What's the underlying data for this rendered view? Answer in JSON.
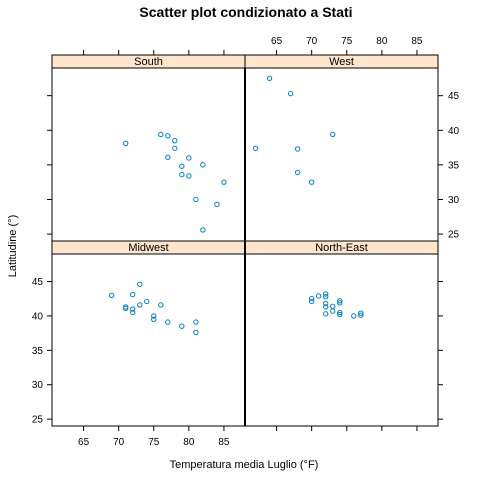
{
  "chart_data": {
    "type": "scatter",
    "title": "Scatter plot condizionato a Stati",
    "xlabel": "Temperatura media Luglio (°F)",
    "ylabel": "Latitudine (°)",
    "xlim": [
      60.5,
      88
    ],
    "ylim": [
      24,
      49
    ],
    "x_ticks": [
      65,
      70,
      75,
      80,
      85
    ],
    "y_ticks": [
      25,
      30,
      35,
      40,
      45
    ],
    "layout": "2x2",
    "strip_color": "#ffe5cc",
    "point_color": "#0080c0",
    "panels": [
      {
        "name": "South",
        "position": "top-left",
        "points": [
          {
            "x": 71,
            "y": 38.1
          },
          {
            "x": 76,
            "y": 39.4
          },
          {
            "x": 77,
            "y": 39.2
          },
          {
            "x": 78,
            "y": 38.5
          },
          {
            "x": 78,
            "y": 37.4
          },
          {
            "x": 77,
            "y": 36.1
          },
          {
            "x": 80,
            "y": 36.0
          },
          {
            "x": 79,
            "y": 34.8
          },
          {
            "x": 82,
            "y": 35.0
          },
          {
            "x": 79,
            "y": 33.6
          },
          {
            "x": 80,
            "y": 33.4
          },
          {
            "x": 85,
            "y": 32.5
          },
          {
            "x": 81,
            "y": 30.0
          },
          {
            "x": 84,
            "y": 29.3
          },
          {
            "x": 82,
            "y": 25.6
          }
        ]
      },
      {
        "name": "West",
        "position": "top-right",
        "points": [
          {
            "x": 64,
            "y": 47.5
          },
          {
            "x": 67,
            "y": 45.3
          },
          {
            "x": 73,
            "y": 39.4
          },
          {
            "x": 62,
            "y": 37.4
          },
          {
            "x": 68,
            "y": 37.3
          },
          {
            "x": 68,
            "y": 33.9
          },
          {
            "x": 70,
            "y": 32.5
          }
        ]
      },
      {
        "name": "Midwest",
        "position": "bottom-left",
        "points": [
          {
            "x": 69,
            "y": 43.0
          },
          {
            "x": 71,
            "y": 41.3
          },
          {
            "x": 71,
            "y": 41.1
          },
          {
            "x": 72,
            "y": 43.1
          },
          {
            "x": 72,
            "y": 41.0
          },
          {
            "x": 72,
            "y": 40.5
          },
          {
            "x": 73,
            "y": 44.6
          },
          {
            "x": 73,
            "y": 41.6
          },
          {
            "x": 74,
            "y": 42.1
          },
          {
            "x": 75,
            "y": 40.0
          },
          {
            "x": 75,
            "y": 39.5
          },
          {
            "x": 76,
            "y": 41.6
          },
          {
            "x": 77,
            "y": 39.1
          },
          {
            "x": 79,
            "y": 38.5
          },
          {
            "x": 81,
            "y": 39.1
          },
          {
            "x": 81,
            "y": 37.6
          }
        ]
      },
      {
        "name": "North-East",
        "position": "bottom-right",
        "points": [
          {
            "x": 70,
            "y": 42.5
          },
          {
            "x": 70,
            "y": 42.1
          },
          {
            "x": 71,
            "y": 42.9
          },
          {
            "x": 72,
            "y": 43.2
          },
          {
            "x": 72,
            "y": 42.8
          },
          {
            "x": 72,
            "y": 41.8
          },
          {
            "x": 72,
            "y": 41.3
          },
          {
            "x": 72,
            "y": 40.3
          },
          {
            "x": 73,
            "y": 41.4
          },
          {
            "x": 73,
            "y": 40.7
          },
          {
            "x": 74,
            "y": 42.2
          },
          {
            "x": 74,
            "y": 41.9
          },
          {
            "x": 74,
            "y": 40.5
          },
          {
            "x": 74,
            "y": 40.2
          },
          {
            "x": 76,
            "y": 40.0
          },
          {
            "x": 77,
            "y": 40.4
          },
          {
            "x": 77,
            "y": 40.1
          }
        ]
      }
    ]
  }
}
